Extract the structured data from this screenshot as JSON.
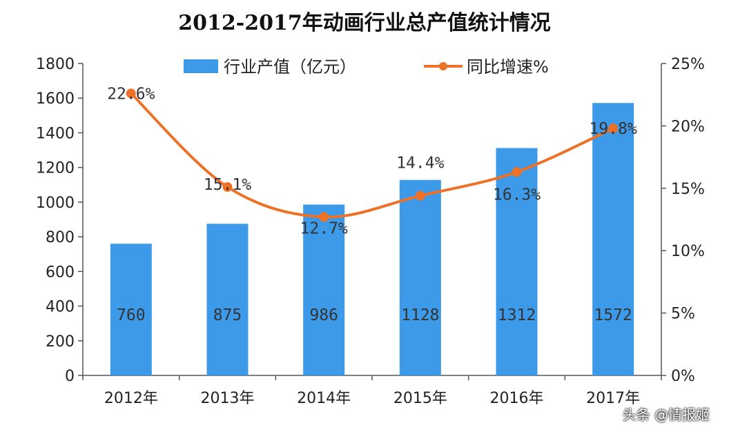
{
  "title": "2012-2017年动画行业总产值统计情况",
  "watermark": "头条 @情报姬",
  "colors": {
    "bar": "#3D9AE8",
    "line": "#EE7128",
    "axis": "#555555"
  },
  "chart_data": {
    "type": "bar",
    "title": "2012-2017年动画行业总产值统计情况",
    "categories": [
      "2012年",
      "2013年",
      "2014年",
      "2015年",
      "2016年",
      "2017年"
    ],
    "series": [
      {
        "name": "行业产值（亿元）",
        "type": "bar",
        "axis": "left",
        "values": [
          760,
          875,
          986,
          1128,
          1312,
          1572
        ],
        "labels": [
          "760",
          "875",
          "986",
          "1128",
          "1312",
          "1572"
        ]
      },
      {
        "name": "同比增速%",
        "type": "line",
        "axis": "right",
        "values": [
          22.6,
          15.1,
          12.7,
          14.4,
          16.3,
          19.8
        ],
        "labels": [
          "22.6%",
          "15.1%",
          "12.7%",
          "14.4%",
          "16.3%",
          "19.8%"
        ]
      }
    ],
    "y_left": {
      "min": 0,
      "max": 1800,
      "ticks": [
        "0",
        "200",
        "400",
        "600",
        "800",
        "1000",
        "1200",
        "1400",
        "1600",
        "1800"
      ]
    },
    "y_right": {
      "min": 0,
      "max": 25,
      "ticks": [
        "0%",
        "5%",
        "10%",
        "15%",
        "20%",
        "25%"
      ]
    },
    "grid": false,
    "legend_position": "top-center"
  }
}
